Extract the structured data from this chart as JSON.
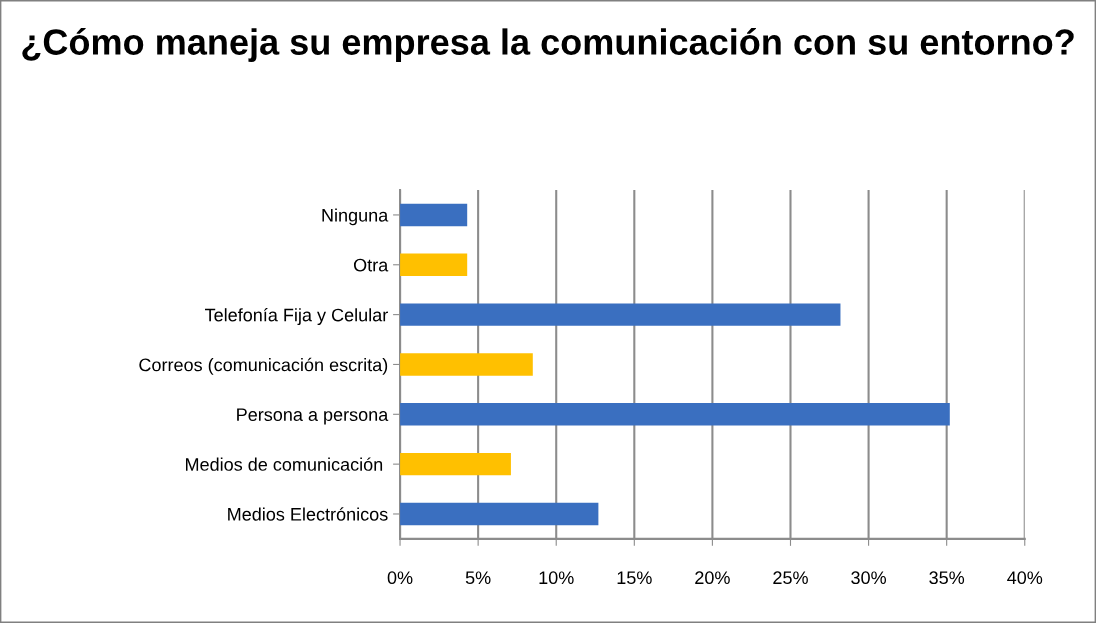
{
  "chart_data": {
    "type": "bar",
    "orientation": "horizontal",
    "title": "¿Cómo maneja su empresa la comunicación con su entorno?",
    "categories": [
      "Ninguna",
      "Otra",
      "Telefonía Fija y Celular",
      "Correos (comunicación escrita)",
      "Persona a persona",
      "Medios de comunicación ",
      "Medios Electrónicos"
    ],
    "values": [
      4.3,
      4.3,
      28.2,
      8.5,
      35.2,
      7.1,
      12.7
    ],
    "colors": [
      "#3a6fc0",
      "#ffc000",
      "#3a6fc0",
      "#ffc000",
      "#3a6fc0",
      "#ffc000",
      "#3a6fc0"
    ],
    "xlim": [
      0,
      40
    ],
    "xticks": [
      {
        "value": 0,
        "label": "0%"
      },
      {
        "value": 5,
        "label": "5%"
      },
      {
        "value": 10,
        "label": "10%"
      },
      {
        "value": 15,
        "label": "15%"
      },
      {
        "value": 20,
        "label": "20%"
      },
      {
        "value": 25,
        "label": "25%"
      },
      {
        "value": 30,
        "label": "30%"
      },
      {
        "value": 35,
        "label": "35%"
      },
      {
        "value": 40,
        "label": "40%"
      }
    ],
    "grid": "x",
    "legend": false
  }
}
